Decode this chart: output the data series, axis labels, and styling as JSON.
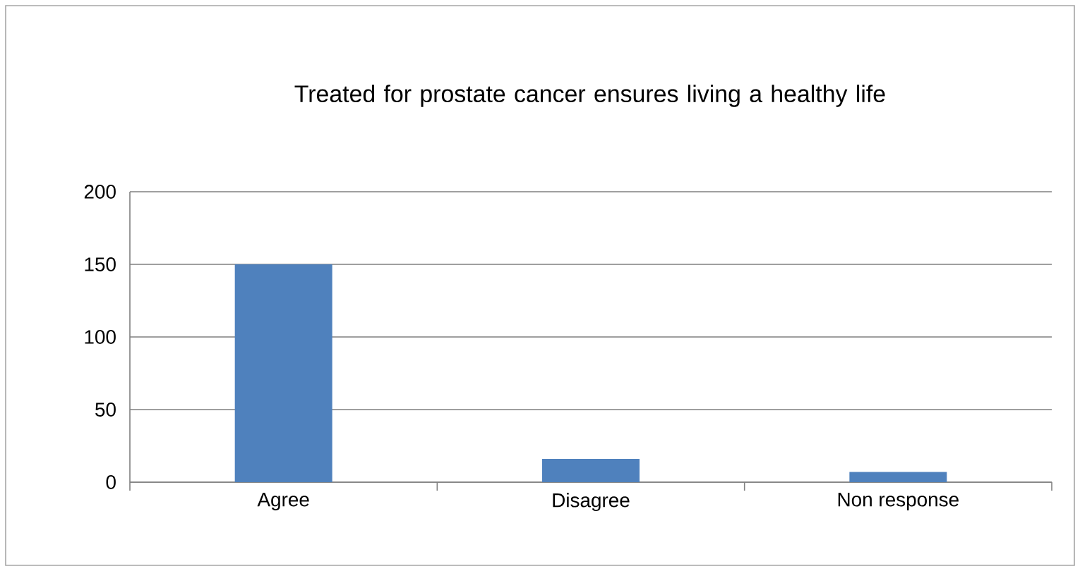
{
  "chart_data": {
    "type": "bar",
    "title": "Treated for prostate cancer ensures living a healthy life",
    "categories": [
      "Agree",
      "Disagree",
      "Non response"
    ],
    "values": [
      150,
      16,
      7
    ],
    "color": "#4f81bd",
    "ylim": [
      0,
      200
    ],
    "yticks": [
      0,
      50,
      100,
      150,
      200
    ],
    "grid": "y"
  }
}
